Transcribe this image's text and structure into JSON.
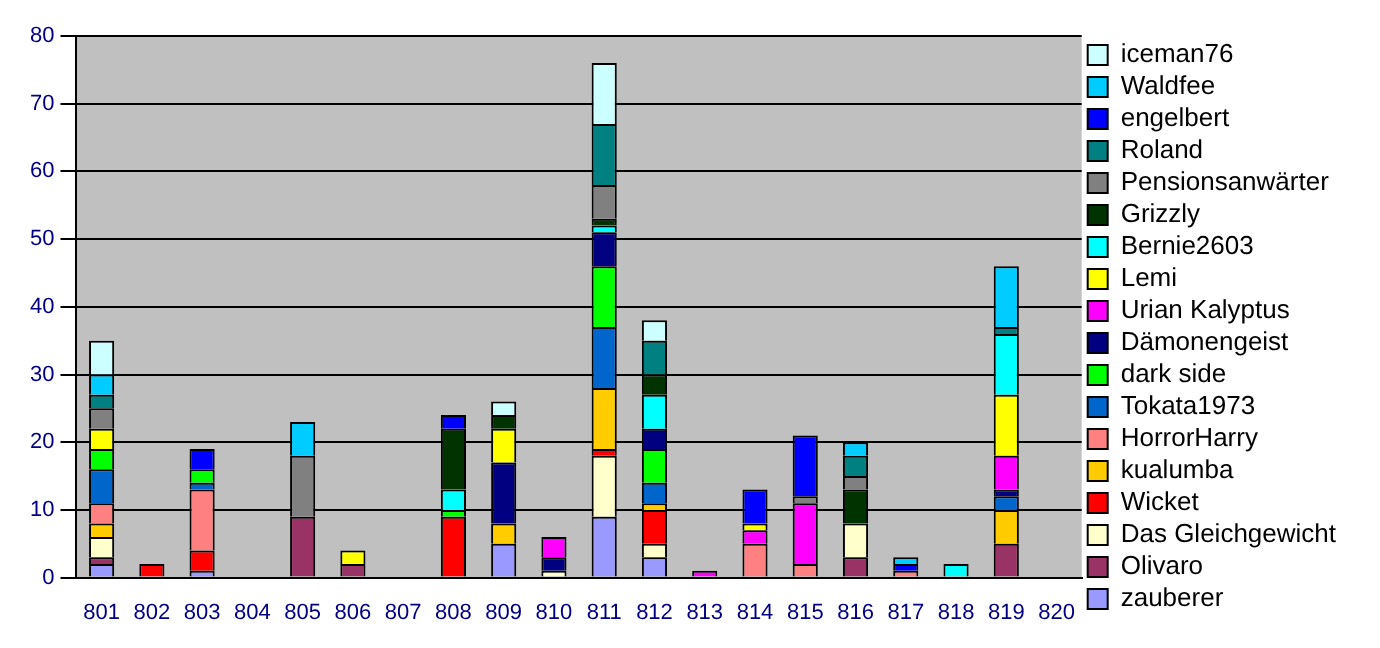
{
  "chart_data": {
    "type": "bar",
    "stacked": true,
    "categories": [
      "801",
      "802",
      "803",
      "804",
      "805",
      "806",
      "807",
      "808",
      "809",
      "810",
      "811",
      "812",
      "813",
      "814",
      "815",
      "816",
      "817",
      "818",
      "819",
      "820"
    ],
    "series": [
      {
        "name": "zauberer",
        "color": "#9999ff",
        "values": [
          2,
          0,
          1,
          0,
          0,
          0,
          0,
          0,
          5,
          0,
          9,
          3,
          0,
          0,
          0,
          0,
          0,
          0,
          0,
          0
        ]
      },
      {
        "name": "Olivaro",
        "color": "#993366",
        "values": [
          1,
          0,
          0,
          0,
          9,
          2,
          0,
          0,
          0,
          0,
          0,
          0,
          0,
          0,
          0,
          3,
          0,
          0,
          5,
          0
        ]
      },
      {
        "name": "Das Gleichgewicht",
        "color": "#ffffcc",
        "values": [
          3,
          0,
          0,
          0,
          0,
          0,
          0,
          0,
          0,
          1,
          9,
          2,
          0,
          0,
          0,
          5,
          0,
          0,
          0,
          0
        ]
      },
      {
        "name": "Wicket",
        "color": "#ff0000",
        "values": [
          0,
          2,
          3,
          0,
          0,
          0,
          0,
          9,
          0,
          0,
          1,
          5,
          0,
          0,
          0,
          0,
          0,
          0,
          0,
          0
        ]
      },
      {
        "name": "kualumba",
        "color": "#ffcc00",
        "values": [
          2,
          0,
          0,
          0,
          0,
          0,
          0,
          0,
          3,
          0,
          9,
          1,
          0,
          0,
          0,
          0,
          0,
          0,
          5,
          0
        ]
      },
      {
        "name": "HorrorHarry",
        "color": "#ff8080",
        "values": [
          3,
          0,
          9,
          0,
          0,
          0,
          0,
          0,
          0,
          0,
          0,
          0,
          0,
          5,
          2,
          0,
          1,
          0,
          0,
          0
        ]
      },
      {
        "name": "Tokata1973",
        "color": "#0066cc",
        "values": [
          5,
          0,
          1,
          0,
          0,
          0,
          0,
          0,
          0,
          0,
          9,
          3,
          0,
          0,
          0,
          0,
          0,
          0,
          2,
          0
        ]
      },
      {
        "name": "dark side",
        "color": "#00ff00",
        "values": [
          3,
          0,
          2,
          0,
          0,
          0,
          0,
          1,
          0,
          0,
          9,
          5,
          0,
          0,
          0,
          0,
          0,
          0,
          0,
          0
        ]
      },
      {
        "name": "Dämonengeist",
        "color": "#000080",
        "values": [
          0,
          0,
          0,
          0,
          0,
          0,
          0,
          0,
          9,
          2,
          5,
          3,
          0,
          0,
          0,
          0,
          0,
          0,
          1,
          0
        ]
      },
      {
        "name": "Urian Kalyptus",
        "color": "#ff00ff",
        "values": [
          0,
          0,
          0,
          0,
          0,
          0,
          0,
          0,
          0,
          3,
          0,
          0,
          1,
          2,
          9,
          0,
          0,
          0,
          5,
          0
        ]
      },
      {
        "name": "Lemi",
        "color": "#ffff00",
        "values": [
          3,
          0,
          0,
          0,
          0,
          2,
          0,
          0,
          5,
          0,
          0,
          0,
          0,
          1,
          0,
          0,
          0,
          0,
          9,
          0
        ]
      },
      {
        "name": "Bernie2603",
        "color": "#00ffff",
        "values": [
          0,
          0,
          0,
          0,
          0,
          0,
          0,
          3,
          0,
          0,
          1,
          5,
          0,
          0,
          0,
          0,
          0,
          2,
          9,
          0
        ]
      },
      {
        "name": "Grizzly",
        "color": "#003300",
        "values": [
          0,
          0,
          0,
          0,
          0,
          0,
          0,
          9,
          2,
          0,
          1,
          3,
          0,
          0,
          0,
          5,
          0,
          0,
          0,
          0
        ]
      },
      {
        "name": "Pensionsanwärter",
        "color": "#808080",
        "values": [
          3,
          0,
          0,
          0,
          9,
          0,
          0,
          0,
          0,
          0,
          5,
          0,
          0,
          0,
          1,
          2,
          0,
          0,
          0,
          0
        ]
      },
      {
        "name": "Roland",
        "color": "#008080",
        "values": [
          2,
          0,
          0,
          0,
          0,
          0,
          0,
          0,
          0,
          0,
          9,
          5,
          0,
          0,
          0,
          3,
          0,
          0,
          1,
          0
        ]
      },
      {
        "name": "engelbert",
        "color": "#0000ff",
        "values": [
          0,
          0,
          3,
          0,
          0,
          0,
          0,
          2,
          0,
          0,
          0,
          0,
          0,
          5,
          9,
          0,
          1,
          0,
          0,
          0
        ]
      },
      {
        "name": "Waldfee",
        "color": "#00ccff",
        "values": [
          3,
          0,
          0,
          0,
          5,
          0,
          0,
          0,
          0,
          0,
          0,
          0,
          0,
          0,
          0,
          2,
          1,
          0,
          9,
          0
        ]
      },
      {
        "name": "iceman76",
        "color": "#ccffff",
        "values": [
          5,
          0,
          0,
          0,
          0,
          0,
          0,
          0,
          2,
          0,
          9,
          3,
          0,
          0,
          0,
          0,
          0,
          0,
          0,
          0
        ]
      }
    ],
    "ylim": [
      0,
      80
    ],
    "yticks": [
      0,
      10,
      20,
      30,
      40,
      50,
      60,
      70,
      80
    ],
    "grid": "y",
    "legend": "right"
  }
}
